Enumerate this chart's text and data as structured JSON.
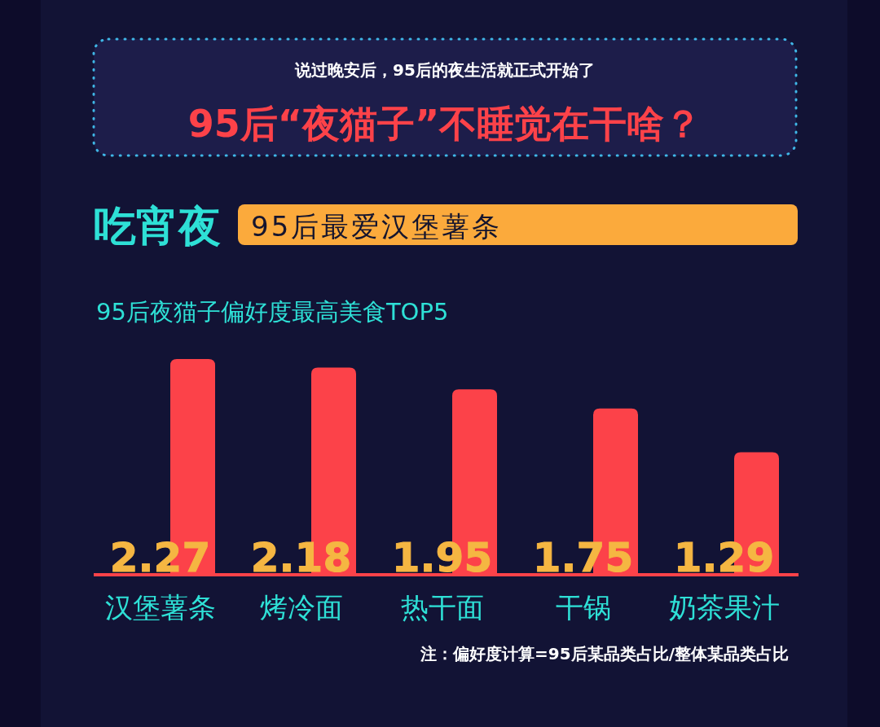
{
  "chart_data": {
    "type": "bar",
    "title": "95后“夜猫子”不睡觉在干啥？",
    "subtitle": "说过晚安后，95后的夜生活就正式开始了",
    "annotations": [
      "吃宵夜",
      "95后最爱汉堡薯条",
      "95后夜猫子偏好度最高美食TOP5",
      "注：偏好度计算=95后某品类占比/整体某品类占比"
    ],
    "categories": [
      "汉堡薯条",
      "烤冷面",
      "热干面",
      "干锅",
      "奶茶果汁"
    ],
    "values": [
      2.27,
      2.18,
      1.95,
      1.75,
      1.29
    ],
    "color": "#fc4249",
    "data_labels": true
  }
}
